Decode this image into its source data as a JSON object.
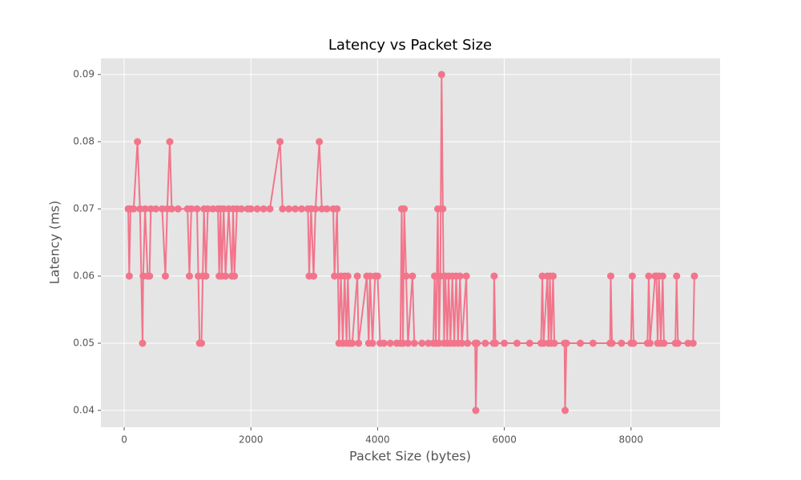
{
  "chart_data": {
    "type": "line",
    "title": "Latency vs Packet Size",
    "x_label": "Packet Size (bytes)",
    "y_label": "Latency (ms)",
    "x": [
      64,
      80,
      100,
      150,
      210,
      250,
      290,
      300,
      330,
      370,
      400,
      420,
      500,
      600,
      650,
      680,
      720,
      750,
      850,
      1000,
      1030,
      1060,
      1150,
      1170,
      1190,
      1220,
      1240,
      1260,
      1290,
      1320,
      1400,
      1480,
      1500,
      1520,
      1540,
      1570,
      1600,
      1650,
      1700,
      1720,
      1740,
      1780,
      1850,
      1950,
      2000,
      2100,
      2200,
      2300,
      2460,
      2500,
      2600,
      2700,
      2800,
      2900,
      2920,
      2950,
      2990,
      3020,
      3080,
      3120,
      3200,
      3300,
      3320,
      3360,
      3390,
      3420,
      3450,
      3480,
      3510,
      3530,
      3560,
      3600,
      3680,
      3700,
      3830,
      3860,
      3880,
      3920,
      3960,
      4000,
      4040,
      4100,
      4200,
      4300,
      4360,
      4380,
      4400,
      4420,
      4450,
      4480,
      4550,
      4580,
      4700,
      4800,
      4880,
      4900,
      4920,
      4950,
      4970,
      4990,
      5010,
      5030,
      5050,
      5070,
      5100,
      5120,
      5150,
      5180,
      5210,
      5240,
      5270,
      5300,
      5330,
      5400,
      5420,
      5540,
      5550,
      5570,
      5700,
      5830,
      5840,
      5860,
      6000,
      6200,
      6400,
      6580,
      6600,
      6620,
      6680,
      6700,
      6720,
      6740,
      6770,
      6790,
      6950,
      6960,
      6980,
      7200,
      7400,
      7670,
      7680,
      7700,
      7850,
      8000,
      8020,
      8040,
      8260,
      8280,
      8300,
      8380,
      8400,
      8420,
      8440,
      8470,
      8500,
      8520,
      8700,
      8720,
      8740,
      8900,
      8980,
      9000
    ],
    "series": [
      {
        "name": "Latency",
        "color": "#f2758b",
        "values": [
          0.07,
          0.06,
          0.07,
          0.07,
          0.08,
          0.07,
          0.05,
          0.06,
          0.07,
          0.06,
          0.06,
          0.07,
          0.07,
          0.07,
          0.06,
          0.07,
          0.08,
          0.07,
          0.07,
          0.07,
          0.06,
          0.07,
          0.07,
          0.06,
          0.05,
          0.05,
          0.06,
          0.07,
          0.06,
          0.07,
          0.07,
          0.07,
          0.06,
          0.07,
          0.06,
          0.07,
          0.06,
          0.07,
          0.06,
          0.07,
          0.06,
          0.07,
          0.07,
          0.07,
          0.07,
          0.07,
          0.07,
          0.07,
          0.08,
          0.07,
          0.07,
          0.07,
          0.07,
          0.07,
          0.06,
          0.07,
          0.06,
          0.07,
          0.08,
          0.07,
          0.07,
          0.07,
          0.06,
          0.07,
          0.05,
          0.06,
          0.05,
          0.06,
          0.05,
          0.06,
          0.05,
          0.05,
          0.06,
          0.05,
          0.06,
          0.05,
          0.06,
          0.05,
          0.06,
          0.06,
          0.05,
          0.05,
          0.05,
          0.05,
          0.05,
          0.07,
          0.05,
          0.07,
          0.06,
          0.05,
          0.06,
          0.05,
          0.05,
          0.05,
          0.05,
          0.06,
          0.05,
          0.07,
          0.05,
          0.06,
          0.09,
          0.07,
          0.05,
          0.06,
          0.05,
          0.06,
          0.05,
          0.06,
          0.05,
          0.06,
          0.05,
          0.06,
          0.05,
          0.06,
          0.05,
          0.05,
          0.04,
          0.05,
          0.05,
          0.05,
          0.06,
          0.05,
          0.05,
          0.05,
          0.05,
          0.05,
          0.06,
          0.05,
          0.06,
          0.05,
          0.06,
          0.05,
          0.06,
          0.05,
          0.05,
          0.04,
          0.05,
          0.05,
          0.05,
          0.05,
          0.06,
          0.05,
          0.05,
          0.05,
          0.06,
          0.05,
          0.05,
          0.06,
          0.05,
          0.06,
          0.06,
          0.05,
          0.06,
          0.05,
          0.06,
          0.05,
          0.05,
          0.06,
          0.05,
          0.05,
          0.05,
          0.06
        ]
      }
    ],
    "xlim": [
      -367,
      9406
    ],
    "ylim": [
      0.0375,
      0.0924
    ],
    "xticks": [
      0,
      2000,
      4000,
      6000,
      8000
    ],
    "yticks": [
      0.04,
      0.05,
      0.06,
      0.07,
      0.08,
      0.09
    ],
    "grid": true
  }
}
